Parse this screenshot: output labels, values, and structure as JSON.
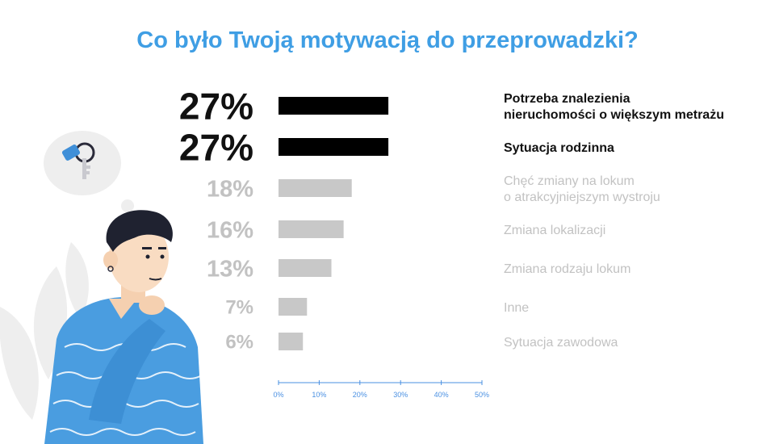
{
  "title": "Co było Twoją motywacją do przeprowadzki?",
  "colors": {
    "title": "#3f9ee4",
    "highlight_bar": "#000000",
    "highlight_text": "#111111",
    "muted_bar": "#c8c8c8",
    "muted_text": "#c2c2c2",
    "axis": "#4a90e2",
    "shirt": "#4a9de0"
  },
  "chart_data": {
    "type": "bar",
    "orientation": "horizontal",
    "title": "Co było Twoją motywacją do przeprowadzki?",
    "categories": [
      "Potrzeba znalezienia nieruchomości o większym metrażu",
      "Sytuacja rodzinna",
      "Chęć zmiany na lokum o atrakcyjniejszym wystroju",
      "Zmiana lokalizacji",
      "Zmiana rodzaju lokum",
      "Inne",
      "Sytuacja zawodowa"
    ],
    "category_lines": [
      [
        "Potrzeba znalezienia",
        "nieruchomości o większym metrażu"
      ],
      [
        "Sytuacja rodzinna"
      ],
      [
        "Chęć zmiany na lokum",
        "o atrakcyjniejszym wystroju"
      ],
      [
        "Zmiana lokalizacji"
      ],
      [
        "Zmiana rodzaju lokum"
      ],
      [
        "Inne"
      ],
      [
        "Sytuacja zawodowa"
      ]
    ],
    "values": [
      27,
      27,
      18,
      16,
      13,
      7,
      6
    ],
    "value_labels": [
      "27%",
      "27%",
      "18%",
      "16%",
      "13%",
      "7%",
      "6%"
    ],
    "highlighted": [
      true,
      true,
      false,
      false,
      false,
      false,
      false
    ],
    "xlim": [
      0,
      50
    ],
    "x_ticks": [
      "0%",
      "10%",
      "20%",
      "30%",
      "40%",
      "50%"
    ],
    "xlabel": "",
    "ylabel": ""
  },
  "illustration": {
    "subject": "thinking-man-with-keys",
    "icons": [
      "keys-icon",
      "thought-bubble"
    ]
  }
}
